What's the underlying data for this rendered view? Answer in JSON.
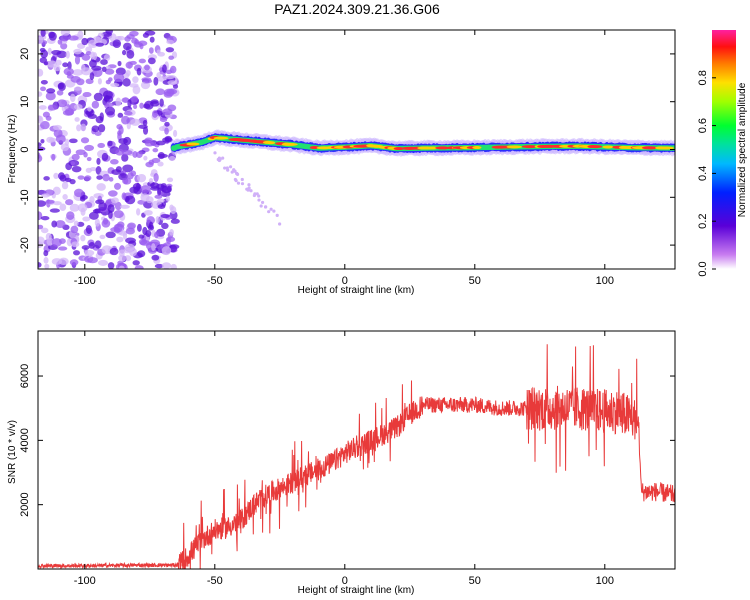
{
  "title": "PAZ1.2024.309.21.36.G06",
  "colors": {
    "snr_line": "#e83a3a",
    "axis": "#000000",
    "scatter_noise": "#7a2ff0",
    "band_core": "#ff2a2a",
    "band_mid": "#20e070",
    "band_outer": "#2b2bff"
  },
  "chart_data": [
    {
      "type": "heatmap",
      "xlabel": "Height of straight line (km)",
      "ylabel": "Frequency (Hz)",
      "xlim": [
        -118,
        127
      ],
      "ylim": [
        -25,
        25
      ],
      "xticks": [
        -100,
        -50,
        0,
        50,
        100
      ],
      "yticks": [
        -20,
        -10,
        0,
        10,
        20
      ],
      "colorbar": {
        "label": "Normalized spectral amplitude",
        "ticks": [
          "0.0",
          "0.2",
          "0.4",
          "0.6",
          "0.8"
        ],
        "range": [
          0,
          1
        ]
      },
      "signal_band": {
        "description_points_x": [
          -65,
          -55,
          -50,
          -40,
          -30,
          -20,
          -10,
          0,
          10,
          20,
          30,
          50,
          70,
          90,
          110,
          127
        ],
        "frequency_y": [
          0.5,
          1.5,
          2.5,
          2.0,
          1.5,
          1.0,
          0.3,
          0.5,
          0.8,
          0.2,
          0.3,
          0.4,
          0.6,
          0.7,
          0.4,
          0.3
        ]
      }
    },
    {
      "type": "line",
      "xlabel": "Height of straight line (km)",
      "ylabel": "SNR (10 * v/v)",
      "xlim": [
        -118,
        127
      ],
      "ylim": [
        0,
        7400
      ],
      "xticks": [
        -100,
        -50,
        0,
        50,
        100
      ],
      "yticks": [
        2000,
        4000,
        6000
      ],
      "series": [
        {
          "x": [
            -118,
            -100,
            -80,
            -65,
            -62,
            -55,
            -50,
            -45,
            -40,
            -35,
            -30,
            -25,
            -20,
            -15,
            -10,
            -5,
            0,
            5,
            10,
            15,
            20,
            25,
            30,
            40,
            50,
            60,
            70,
            80,
            90,
            100,
            105,
            110,
            113,
            114,
            120,
            127
          ],
          "y": [
            100,
            100,
            120,
            120,
            250,
            900,
            1200,
            1300,
            1500,
            2000,
            2300,
            2500,
            2700,
            2900,
            3100,
            3300,
            3600,
            3800,
            4000,
            4200,
            4400,
            4800,
            5100,
            5100,
            5100,
            5000,
            5000,
            5000,
            5000,
            4900,
            4900,
            4700,
            4600,
            2400,
            2400,
            2300
          ]
        }
      ]
    }
  ]
}
